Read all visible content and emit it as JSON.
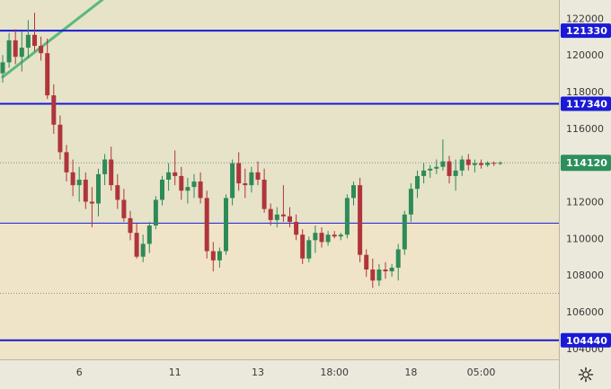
{
  "chart_data": {
    "type": "candlestick",
    "colors": {
      "plot_bg_upper": "#e6e3c9",
      "plot_bg_lower": "#efe4c8",
      "axis_bg": "#ebe9db",
      "bull": "#2e8b57",
      "bear": "#b0353a",
      "level_line": "#1a1ad6",
      "trend_line": "#5cb87a",
      "current_tag": "#2c8f5c",
      "dotted": "#8a8a8a"
    },
    "y_axis": {
      "min": 103400,
      "max": 123000,
      "ticks": [
        "122000",
        "120000",
        "118000",
        "116000",
        "112000",
        "110000",
        "108000",
        "106000"
      ],
      "tick_values": [
        122000,
        120000,
        118000,
        116000,
        112000,
        110000,
        108000,
        106000
      ],
      "partial_tick": "104000"
    },
    "x_axis": {
      "labels": [
        "6",
        "11",
        "13",
        "18:00",
        "18",
        "05:00"
      ],
      "label_index": [
        12,
        27,
        40,
        52,
        64,
        75
      ]
    },
    "levels": [
      {
        "value": 121330,
        "label": "121330",
        "tagged": true,
        "width": 2
      },
      {
        "value": 117340,
        "label": "117340",
        "tagged": true,
        "width": 2
      },
      {
        "value": 110830,
        "label": "",
        "tagged": false,
        "width": 1
      },
      {
        "value": 104440,
        "label": "104440",
        "tagged": true,
        "width": 2
      }
    ],
    "current_price": {
      "value": 114120,
      "label": "114120"
    },
    "dotted_lines": [
      114120,
      107000
    ],
    "lower_zone_top": 110830,
    "candles": [
      [
        119000,
        120000,
        118500,
        119600
      ],
      [
        119600,
        121200,
        119300,
        120800
      ],
      [
        120800,
        121400,
        119500,
        119900
      ],
      [
        119900,
        121300,
        119100,
        120400
      ],
      [
        120400,
        121900,
        119800,
        121100
      ],
      [
        121100,
        122300,
        120200,
        120500
      ],
      [
        120500,
        121000,
        119700,
        120100
      ],
      [
        120100,
        120900,
        117600,
        117800
      ],
      [
        117800,
        118400,
        115700,
        116200
      ],
      [
        116200,
        116700,
        114300,
        114700
      ],
      [
        114700,
        115100,
        113100,
        113600
      ],
      [
        113600,
        114300,
        112300,
        112900
      ],
      [
        112900,
        113900,
        112000,
        113200
      ],
      [
        113200,
        113600,
        111600,
        112000
      ],
      [
        112000,
        112800,
        110600,
        111900
      ],
      [
        111900,
        113800,
        111200,
        113500
      ],
      [
        113500,
        114600,
        112900,
        114300
      ],
      [
        114300,
        115000,
        112600,
        112900
      ],
      [
        112900,
        113500,
        111600,
        112100
      ],
      [
        112100,
        112700,
        110900,
        111100
      ],
      [
        111100,
        111500,
        109900,
        110300
      ],
      [
        110300,
        110800,
        108900,
        109000
      ],
      [
        109000,
        110200,
        108700,
        109700
      ],
      [
        109700,
        110900,
        109200,
        110700
      ],
      [
        110700,
        112300,
        110500,
        112100
      ],
      [
        112100,
        113400,
        111800,
        113200
      ],
      [
        113200,
        114100,
        112600,
        113600
      ],
      [
        113600,
        114800,
        112900,
        113400
      ],
      [
        113400,
        113900,
        112100,
        112600
      ],
      [
        112600,
        113300,
        111900,
        112800
      ],
      [
        112800,
        113500,
        112200,
        113100
      ],
      [
        113100,
        113600,
        111900,
        112200
      ],
      [
        112200,
        112600,
        108900,
        109300
      ],
      [
        109300,
        109800,
        108200,
        108800
      ],
      [
        108800,
        109500,
        108400,
        109300
      ],
      [
        109300,
        112400,
        109100,
        112200
      ],
      [
        112200,
        114300,
        111800,
        114100
      ],
      [
        114100,
        114700,
        112600,
        113000
      ],
      [
        113000,
        113800,
        112200,
        112900
      ],
      [
        112900,
        113900,
        112500,
        113600
      ],
      [
        113600,
        114200,
        112900,
        113200
      ],
      [
        113200,
        113800,
        111400,
        111600
      ],
      [
        111600,
        111900,
        110700,
        111000
      ],
      [
        111000,
        111700,
        110600,
        111300
      ],
      [
        111300,
        112900,
        110900,
        111200
      ],
      [
        111200,
        111700,
        110600,
        110900
      ],
      [
        110900,
        111300,
        109900,
        110200
      ],
      [
        110200,
        110500,
        108600,
        108900
      ],
      [
        108900,
        110100,
        108700,
        109900
      ],
      [
        109900,
        110700,
        109200,
        110300
      ],
      [
        110300,
        110600,
        109500,
        109800
      ],
      [
        109800,
        110400,
        109600,
        110200
      ],
      [
        110200,
        110400,
        110000,
        110100
      ],
      [
        110100,
        110300,
        109900,
        110200
      ],
      [
        110200,
        112400,
        110000,
        112200
      ],
      [
        112200,
        113100,
        111800,
        112900
      ],
      [
        112900,
        113300,
        108700,
        109100
      ],
      [
        109100,
        109400,
        107900,
        108300
      ],
      [
        108300,
        108900,
        107300,
        107700
      ],
      [
        107700,
        108600,
        107400,
        108300
      ],
      [
        108300,
        108700,
        107800,
        108200
      ],
      [
        108200,
        108600,
        107900,
        108400
      ],
      [
        108400,
        109700,
        107700,
        109400
      ],
      [
        109400,
        111500,
        109100,
        111300
      ],
      [
        111300,
        113000,
        110900,
        112700
      ],
      [
        112700,
        113700,
        112200,
        113400
      ],
      [
        113400,
        114100,
        113000,
        113700
      ],
      [
        113700,
        114000,
        113300,
        113800
      ],
      [
        113800,
        114300,
        113500,
        113900
      ],
      [
        113900,
        115400,
        113700,
        114200
      ],
      [
        114200,
        114500,
        113000,
        113400
      ],
      [
        113400,
        114300,
        112600,
        113700
      ],
      [
        113700,
        114500,
        113400,
        114300
      ],
      [
        114300,
        114600,
        113700,
        114000
      ],
      [
        114000,
        114300,
        113600,
        114100
      ],
      [
        114100,
        114300,
        113800,
        114000
      ],
      [
        114000,
        114200,
        113900,
        114120
      ],
      [
        114120,
        114200,
        113950,
        114100
      ],
      [
        114100,
        114200,
        114000,
        114120
      ]
    ],
    "trend_line": {
      "from": {
        "i": 0,
        "v": 118800
      },
      "to": {
        "i": 20,
        "v": 124200
      }
    }
  },
  "settings_icon": "gear-icon"
}
